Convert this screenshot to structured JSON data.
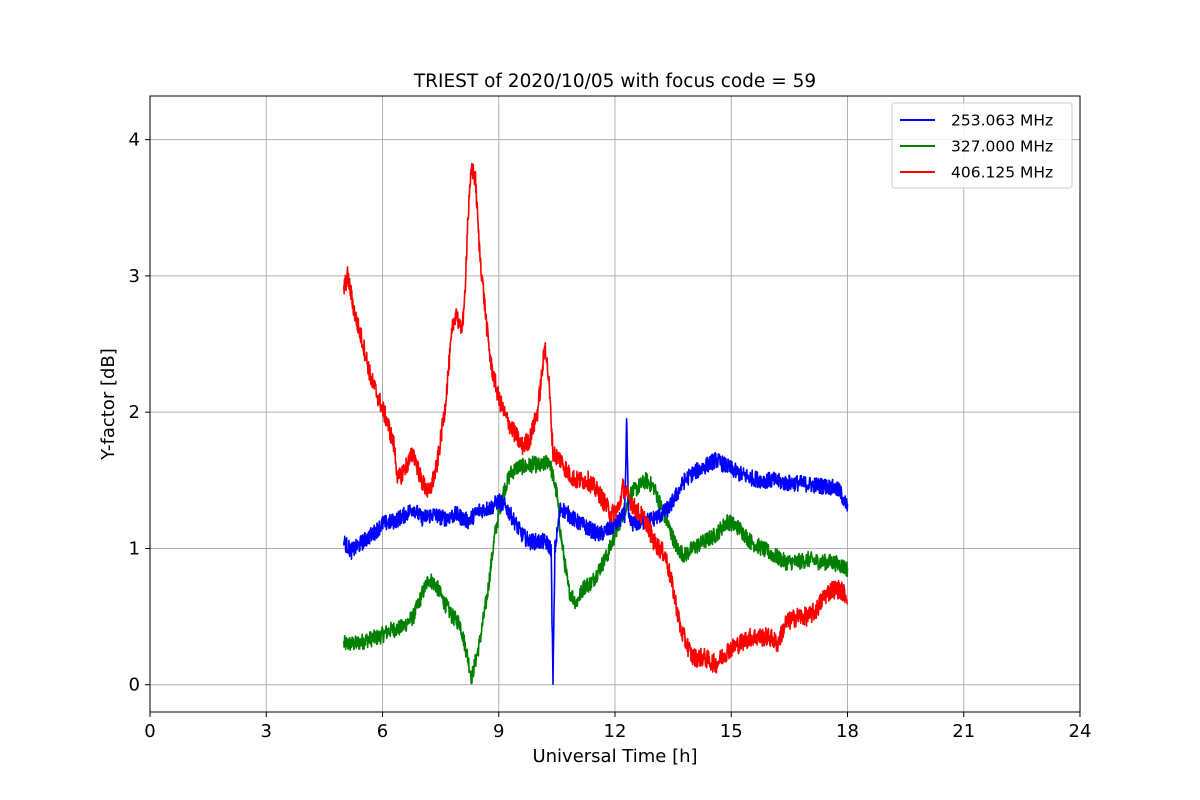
{
  "chart_data": {
    "type": "line",
    "title": "TRIEST of 2020/10/05 with focus code = 59",
    "xlabel": "Universal Time [h]",
    "ylabel": "Y-factor [dB]",
    "xlim": [
      0,
      24
    ],
    "ylim": [
      -0.2,
      4.32
    ],
    "xticks": [
      0,
      3,
      6,
      9,
      12,
      15,
      18,
      21,
      24
    ],
    "yticks": [
      0,
      1,
      2,
      3,
      4
    ],
    "grid": true,
    "legend_position": "top-right",
    "noise": {
      "253.063 MHz": 0.06,
      "327.000 MHz": 0.06,
      "406.125 MHz": 0.07
    },
    "series": [
      {
        "name": "253.063 MHz",
        "color": "#0000ff",
        "x": [
          5.0,
          5.2,
          5.5,
          5.8,
          6.0,
          6.3,
          6.6,
          6.8,
          7.0,
          7.3,
          7.6,
          7.9,
          8.2,
          8.5,
          8.8,
          9.0,
          9.2,
          9.4,
          9.6,
          9.8,
          10.0,
          10.2,
          10.35,
          10.4,
          10.45,
          10.6,
          10.8,
          11.0,
          11.3,
          11.6,
          11.9,
          12.1,
          12.25,
          12.3,
          12.35,
          12.5,
          12.8,
          13.0,
          13.2,
          13.4,
          13.6,
          13.8,
          14.0,
          14.3,
          14.6,
          14.9,
          15.2,
          15.5,
          15.8,
          16.1,
          16.4,
          16.7,
          17.0,
          17.3,
          17.6,
          17.8,
          18.0
        ],
        "y": [
          1.05,
          0.98,
          1.05,
          1.12,
          1.18,
          1.2,
          1.25,
          1.3,
          1.22,
          1.25,
          1.22,
          1.25,
          1.2,
          1.28,
          1.3,
          1.35,
          1.3,
          1.2,
          1.1,
          1.05,
          1.05,
          1.05,
          1.0,
          0.0,
          1.0,
          1.3,
          1.25,
          1.2,
          1.15,
          1.1,
          1.15,
          1.2,
          1.25,
          1.95,
          1.2,
          1.18,
          1.2,
          1.22,
          1.25,
          1.3,
          1.4,
          1.5,
          1.55,
          1.6,
          1.65,
          1.6,
          1.55,
          1.52,
          1.5,
          1.5,
          1.48,
          1.48,
          1.47,
          1.46,
          1.45,
          1.42,
          1.3
        ]
      },
      {
        "name": "327.000 MHz",
        "color": "#008000",
        "x": [
          5.0,
          5.3,
          5.6,
          5.9,
          6.2,
          6.5,
          6.8,
          7.0,
          7.2,
          7.4,
          7.6,
          7.8,
          8.0,
          8.2,
          8.3,
          8.5,
          8.7,
          8.9,
          9.1,
          9.3,
          9.5,
          9.7,
          9.9,
          10.1,
          10.3,
          10.5,
          10.6,
          10.8,
          11.0,
          11.2,
          11.4,
          11.6,
          11.8,
          12.0,
          12.2,
          12.4,
          12.6,
          12.8,
          13.0,
          13.2,
          13.4,
          13.6,
          13.8,
          14.0,
          14.3,
          14.6,
          14.9,
          15.2,
          15.5,
          15.8,
          16.1,
          16.4,
          16.7,
          17.0,
          17.3,
          17.6,
          17.8,
          18.0
        ],
        "y": [
          0.3,
          0.3,
          0.33,
          0.35,
          0.4,
          0.42,
          0.5,
          0.65,
          0.78,
          0.72,
          0.6,
          0.5,
          0.45,
          0.2,
          0.05,
          0.3,
          0.65,
          1.1,
          1.4,
          1.55,
          1.6,
          1.6,
          1.62,
          1.6,
          1.65,
          1.4,
          1.1,
          0.7,
          0.6,
          0.72,
          0.75,
          0.85,
          0.95,
          1.1,
          1.25,
          1.4,
          1.45,
          1.5,
          1.45,
          1.3,
          1.15,
          1.0,
          0.95,
          1.0,
          1.05,
          1.1,
          1.2,
          1.15,
          1.05,
          1.0,
          0.95,
          0.9,
          0.9,
          0.92,
          0.9,
          0.9,
          0.88,
          0.85
        ]
      },
      {
        "name": "406.125 MHz",
        "color": "#ff0000",
        "x": [
          5.0,
          5.1,
          5.3,
          5.5,
          5.7,
          5.9,
          6.1,
          6.3,
          6.4,
          6.6,
          6.8,
          7.0,
          7.2,
          7.4,
          7.6,
          7.8,
          7.9,
          8.0,
          8.1,
          8.2,
          8.3,
          8.4,
          8.5,
          8.6,
          8.7,
          8.8,
          9.0,
          9.2,
          9.4,
          9.6,
          9.8,
          10.0,
          10.2,
          10.3,
          10.4,
          10.6,
          10.8,
          11.0,
          11.3,
          11.6,
          11.9,
          12.1,
          12.2,
          12.3,
          12.5,
          12.8,
          13.0,
          13.3,
          13.5,
          13.7,
          14.0,
          14.3,
          14.6,
          14.9,
          15.2,
          15.5,
          15.8,
          16.0,
          16.2,
          16.4,
          16.7,
          17.0,
          17.2,
          17.4,
          17.6,
          17.8,
          18.0
        ],
        "y": [
          2.9,
          3.0,
          2.7,
          2.5,
          2.25,
          2.1,
          1.95,
          1.75,
          1.5,
          1.6,
          1.7,
          1.5,
          1.4,
          1.6,
          2.0,
          2.6,
          2.75,
          2.6,
          2.7,
          3.4,
          3.8,
          3.7,
          3.2,
          2.9,
          2.6,
          2.35,
          2.1,
          1.95,
          1.85,
          1.75,
          1.8,
          2.0,
          2.5,
          2.2,
          1.7,
          1.65,
          1.55,
          1.5,
          1.5,
          1.4,
          1.25,
          1.3,
          1.45,
          1.4,
          1.3,
          1.2,
          1.05,
          0.95,
          0.7,
          0.4,
          0.2,
          0.2,
          0.15,
          0.25,
          0.3,
          0.35,
          0.35,
          0.35,
          0.3,
          0.45,
          0.5,
          0.5,
          0.55,
          0.65,
          0.7,
          0.7,
          0.65
        ]
      }
    ]
  }
}
